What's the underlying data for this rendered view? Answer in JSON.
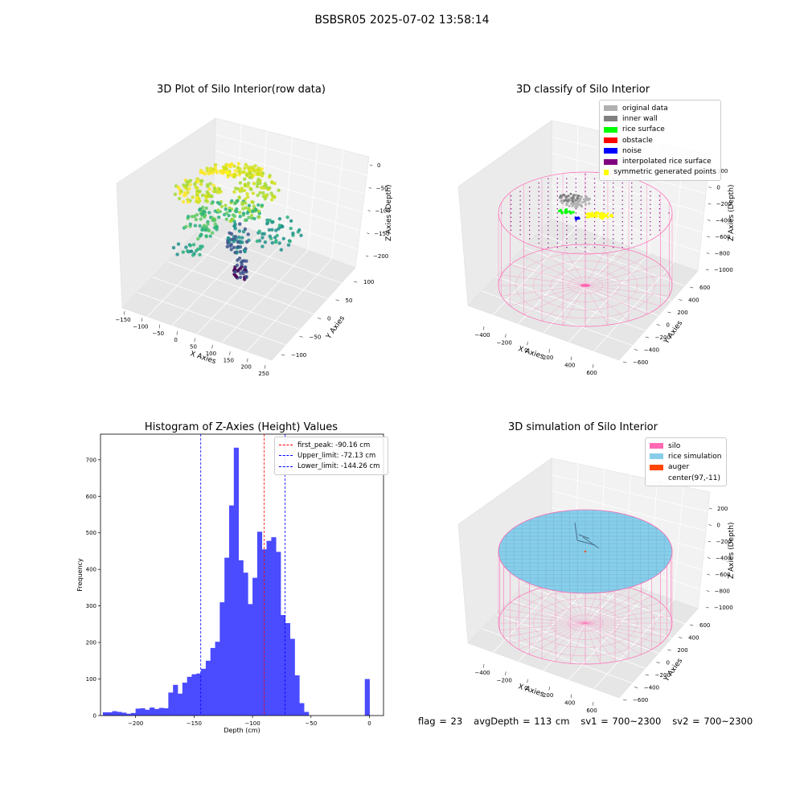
{
  "figure": {
    "title": "BSBSR05 2025-07-02 13:58:14",
    "footer": {
      "flag": "flag = 23",
      "avg_depth": "avgDepth = 113 cm",
      "sv1": "sv1 = 700~2300",
      "sv2": "sv2 = 700~2300"
    }
  },
  "chart_data": [
    {
      "type": "scatter",
      "title": "3D Plot of Silo Interior(row data)",
      "xlabel": "X Axies",
      "ylabel": "Y Axies",
      "zlabel": "Z Axies (Depth)",
      "x_ticks": [
        "−150",
        "−100",
        "−50",
        "0",
        "50",
        "100",
        "150",
        "200",
        "250"
      ],
      "y_ticks": [
        "−100",
        "−50",
        "0",
        "50",
        "100"
      ],
      "z_ticks": [
        "0",
        "−50",
        "−100",
        "−150",
        "−200"
      ],
      "colormap": "viridis"
    },
    {
      "type": "scatter",
      "title": "3D classify of Silo Interior",
      "xlabel": "X Axies",
      "ylabel": "Y Axies",
      "zlabel": "Z Axies (Depth)",
      "x_ticks": [
        "−400",
        "−200",
        "0",
        "200",
        "400",
        "600"
      ],
      "y_ticks": [
        "−600",
        "−400",
        "−200",
        "0",
        "200",
        "400",
        "600"
      ],
      "z_ticks": [
        "200",
        "0",
        "−200",
        "−400",
        "−600",
        "−800",
        "−1000"
      ],
      "legend": [
        {
          "label": "original data",
          "color": "#b0b0b0"
        },
        {
          "label": "inner wall",
          "color": "#808080"
        },
        {
          "label": "rice surface",
          "color": "#00ff00"
        },
        {
          "label": "obstacle",
          "color": "#ff0000"
        },
        {
          "label": "noise",
          "color": "#0000ff"
        },
        {
          "label": "interpolated rice surface",
          "color": "#800080"
        },
        {
          "label": "symmetric generated points",
          "color": "#ffff00"
        }
      ],
      "wire_color": "#ff69b4"
    },
    {
      "type": "bar",
      "title": "Histogram of Z-Axies (Height) Values",
      "xlabel": "Depth (cm)",
      "ylabel": "Frequency",
      "xlim": [
        -230,
        12
      ],
      "ylim": [
        0,
        770
      ],
      "bar_color": "#4b4bff",
      "bin_width": 4.25,
      "bins": [
        [
          -228,
          9
        ],
        [
          -224,
          9
        ],
        [
          -220,
          12
        ],
        [
          -216,
          10
        ],
        [
          -212,
          8
        ],
        [
          -208,
          5
        ],
        [
          -204,
          7
        ],
        [
          -200,
          19
        ],
        [
          -196,
          20
        ],
        [
          -192,
          16
        ],
        [
          -188,
          22
        ],
        [
          -184,
          18
        ],
        [
          -180,
          21
        ],
        [
          -176,
          20
        ],
        [
          -172,
          63
        ],
        [
          -168,
          84
        ],
        [
          -164,
          60
        ],
        [
          -160,
          90
        ],
        [
          -156,
          106
        ],
        [
          -152,
          113
        ],
        [
          -148,
          115
        ],
        [
          -144,
          128
        ],
        [
          -140,
          150
        ],
        [
          -136,
          185
        ],
        [
          -132,
          202
        ],
        [
          -128,
          310
        ],
        [
          -124,
          432
        ],
        [
          -120,
          575
        ],
        [
          -116,
          733
        ],
        [
          -112,
          425
        ],
        [
          -108,
          391
        ],
        [
          -104,
          305
        ],
        [
          -100,
          377
        ],
        [
          -96,
          503
        ],
        [
          -92,
          455
        ],
        [
          -88,
          478
        ],
        [
          -84,
          488
        ],
        [
          -80,
          448
        ],
        [
          -76,
          275
        ],
        [
          -72,
          253
        ],
        [
          -68,
          210
        ],
        [
          -64,
          110
        ],
        [
          -60,
          34
        ],
        [
          -56,
          10
        ],
        [
          -4,
          100
        ]
      ],
      "x_ticks": [
        -200,
        -150,
        -100,
        -50,
        0
      ],
      "x_tick_labels": [
        "−200",
        "−150",
        "−100",
        "−50",
        "0"
      ],
      "y_ticks": [
        0,
        100,
        200,
        300,
        400,
        500,
        600,
        700
      ],
      "vlines": [
        {
          "name": "first_peak",
          "label": "first_peak: -90.16 cm",
          "x": -90.16,
          "color": "#ff0000"
        },
        {
          "name": "upper_limit",
          "label": "Upper_limit: -72.13 cm",
          "x": -72.13,
          "color": "#0000ff"
        },
        {
          "name": "lower_limit",
          "label": "Lower_limit: -144.26 cm",
          "x": -144.26,
          "color": "#0000ff"
        }
      ]
    },
    {
      "type": "scatter",
      "title": "3D simulation of Silo Interior",
      "xlabel": "X Axies",
      "ylabel": "Y Axies",
      "zlabel": "Z Axies (Depth)",
      "x_ticks": [
        "−400",
        "−200",
        "0",
        "200",
        "400",
        "600"
      ],
      "y_ticks": [
        "−600",
        "−400",
        "−200",
        "0",
        "200",
        "400",
        "600"
      ],
      "z_ticks": [
        "200",
        "0",
        "−200",
        "−400",
        "−600",
        "−800",
        "−1000"
      ],
      "legend": [
        {
          "label": "silo",
          "color": "#ff69b4"
        },
        {
          "label": "rice simulation",
          "color": "#87ceeb"
        },
        {
          "label": "auger",
          "color": "#ff4500"
        },
        {
          "label": "center(97,-11)",
          "color": "#ffffff"
        }
      ]
    }
  ]
}
